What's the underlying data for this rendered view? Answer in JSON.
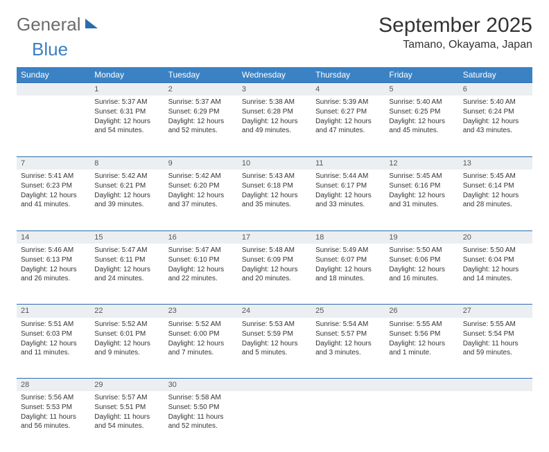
{
  "logo": {
    "part1": "General",
    "part2": "Blue"
  },
  "title": "September 2025",
  "location": "Tamano, Okayama, Japan",
  "colors": {
    "header_bg": "#3b82c4",
    "header_text": "#ffffff",
    "daynum_bg": "#eceff1",
    "row_border": "#2b6bb0",
    "logo_gray": "#6b6b6b",
    "logo_blue": "#3b7fc4"
  },
  "weekdays": [
    "Sunday",
    "Monday",
    "Tuesday",
    "Wednesday",
    "Thursday",
    "Friday",
    "Saturday"
  ],
  "weeks": [
    {
      "nums": [
        "",
        "1",
        "2",
        "3",
        "4",
        "5",
        "6"
      ],
      "cells": [
        null,
        {
          "sunrise": "Sunrise: 5:37 AM",
          "sunset": "Sunset: 6:31 PM",
          "daylight": "Daylight: 12 hours and 54 minutes."
        },
        {
          "sunrise": "Sunrise: 5:37 AM",
          "sunset": "Sunset: 6:29 PM",
          "daylight": "Daylight: 12 hours and 52 minutes."
        },
        {
          "sunrise": "Sunrise: 5:38 AM",
          "sunset": "Sunset: 6:28 PM",
          "daylight": "Daylight: 12 hours and 49 minutes."
        },
        {
          "sunrise": "Sunrise: 5:39 AM",
          "sunset": "Sunset: 6:27 PM",
          "daylight": "Daylight: 12 hours and 47 minutes."
        },
        {
          "sunrise": "Sunrise: 5:40 AM",
          "sunset": "Sunset: 6:25 PM",
          "daylight": "Daylight: 12 hours and 45 minutes."
        },
        {
          "sunrise": "Sunrise: 5:40 AM",
          "sunset": "Sunset: 6:24 PM",
          "daylight": "Daylight: 12 hours and 43 minutes."
        }
      ]
    },
    {
      "nums": [
        "7",
        "8",
        "9",
        "10",
        "11",
        "12",
        "13"
      ],
      "cells": [
        {
          "sunrise": "Sunrise: 5:41 AM",
          "sunset": "Sunset: 6:23 PM",
          "daylight": "Daylight: 12 hours and 41 minutes."
        },
        {
          "sunrise": "Sunrise: 5:42 AM",
          "sunset": "Sunset: 6:21 PM",
          "daylight": "Daylight: 12 hours and 39 minutes."
        },
        {
          "sunrise": "Sunrise: 5:42 AM",
          "sunset": "Sunset: 6:20 PM",
          "daylight": "Daylight: 12 hours and 37 minutes."
        },
        {
          "sunrise": "Sunrise: 5:43 AM",
          "sunset": "Sunset: 6:18 PM",
          "daylight": "Daylight: 12 hours and 35 minutes."
        },
        {
          "sunrise": "Sunrise: 5:44 AM",
          "sunset": "Sunset: 6:17 PM",
          "daylight": "Daylight: 12 hours and 33 minutes."
        },
        {
          "sunrise": "Sunrise: 5:45 AM",
          "sunset": "Sunset: 6:16 PM",
          "daylight": "Daylight: 12 hours and 31 minutes."
        },
        {
          "sunrise": "Sunrise: 5:45 AM",
          "sunset": "Sunset: 6:14 PM",
          "daylight": "Daylight: 12 hours and 28 minutes."
        }
      ]
    },
    {
      "nums": [
        "14",
        "15",
        "16",
        "17",
        "18",
        "19",
        "20"
      ],
      "cells": [
        {
          "sunrise": "Sunrise: 5:46 AM",
          "sunset": "Sunset: 6:13 PM",
          "daylight": "Daylight: 12 hours and 26 minutes."
        },
        {
          "sunrise": "Sunrise: 5:47 AM",
          "sunset": "Sunset: 6:11 PM",
          "daylight": "Daylight: 12 hours and 24 minutes."
        },
        {
          "sunrise": "Sunrise: 5:47 AM",
          "sunset": "Sunset: 6:10 PM",
          "daylight": "Daylight: 12 hours and 22 minutes."
        },
        {
          "sunrise": "Sunrise: 5:48 AM",
          "sunset": "Sunset: 6:09 PM",
          "daylight": "Daylight: 12 hours and 20 minutes."
        },
        {
          "sunrise": "Sunrise: 5:49 AM",
          "sunset": "Sunset: 6:07 PM",
          "daylight": "Daylight: 12 hours and 18 minutes."
        },
        {
          "sunrise": "Sunrise: 5:50 AM",
          "sunset": "Sunset: 6:06 PM",
          "daylight": "Daylight: 12 hours and 16 minutes."
        },
        {
          "sunrise": "Sunrise: 5:50 AM",
          "sunset": "Sunset: 6:04 PM",
          "daylight": "Daylight: 12 hours and 14 minutes."
        }
      ]
    },
    {
      "nums": [
        "21",
        "22",
        "23",
        "24",
        "25",
        "26",
        "27"
      ],
      "cells": [
        {
          "sunrise": "Sunrise: 5:51 AM",
          "sunset": "Sunset: 6:03 PM",
          "daylight": "Daylight: 12 hours and 11 minutes."
        },
        {
          "sunrise": "Sunrise: 5:52 AM",
          "sunset": "Sunset: 6:01 PM",
          "daylight": "Daylight: 12 hours and 9 minutes."
        },
        {
          "sunrise": "Sunrise: 5:52 AM",
          "sunset": "Sunset: 6:00 PM",
          "daylight": "Daylight: 12 hours and 7 minutes."
        },
        {
          "sunrise": "Sunrise: 5:53 AM",
          "sunset": "Sunset: 5:59 PM",
          "daylight": "Daylight: 12 hours and 5 minutes."
        },
        {
          "sunrise": "Sunrise: 5:54 AM",
          "sunset": "Sunset: 5:57 PM",
          "daylight": "Daylight: 12 hours and 3 minutes."
        },
        {
          "sunrise": "Sunrise: 5:55 AM",
          "sunset": "Sunset: 5:56 PM",
          "daylight": "Daylight: 12 hours and 1 minute."
        },
        {
          "sunrise": "Sunrise: 5:55 AM",
          "sunset": "Sunset: 5:54 PM",
          "daylight": "Daylight: 11 hours and 59 minutes."
        }
      ]
    },
    {
      "nums": [
        "28",
        "29",
        "30",
        "",
        "",
        "",
        ""
      ],
      "cells": [
        {
          "sunrise": "Sunrise: 5:56 AM",
          "sunset": "Sunset: 5:53 PM",
          "daylight": "Daylight: 11 hours and 56 minutes."
        },
        {
          "sunrise": "Sunrise: 5:57 AM",
          "sunset": "Sunset: 5:51 PM",
          "daylight": "Daylight: 11 hours and 54 minutes."
        },
        {
          "sunrise": "Sunrise: 5:58 AM",
          "sunset": "Sunset: 5:50 PM",
          "daylight": "Daylight: 11 hours and 52 minutes."
        },
        null,
        null,
        null,
        null
      ]
    }
  ]
}
